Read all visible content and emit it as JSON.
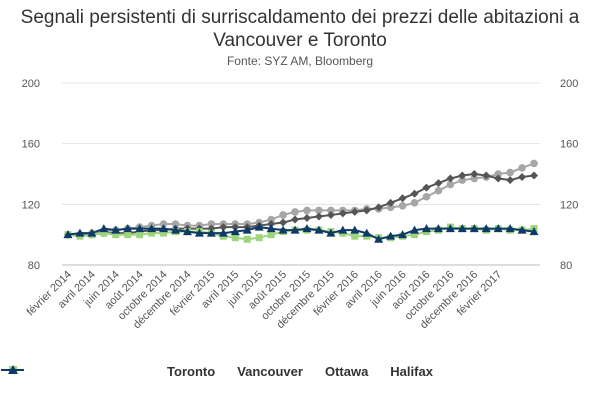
{
  "chart_data": {
    "type": "line",
    "title": "Segnali persistenti di surriscaldamento dei prezzi delle abitazioni a Vancouver e Toronto",
    "subtitle": "Fonte: SYZ AM, Bloomberg",
    "ylim": [
      80,
      200
    ],
    "yticks": [
      80,
      120,
      160,
      200
    ],
    "grid": true,
    "legend_position": "bottom",
    "x_tick_labels": [
      "février 2014",
      "avril 2014",
      "juin 2014",
      "août 2014",
      "octobre 2014",
      "décembre 2014",
      "février 2015",
      "avril 2015",
      "juin 2015",
      "août 2015",
      "octobre 2015",
      "décembre 2015",
      "février 2016",
      "avril 2016",
      "juin 2016",
      "août 2016",
      "octobre 2016",
      "décembre 2016",
      "février 2017"
    ],
    "series": [
      {
        "name": "Toronto",
        "color": "#a6a6a6",
        "marker": "circle",
        "values": [
          100,
          100,
          101,
          102,
          103,
          104,
          105,
          106,
          107,
          107,
          106,
          106,
          107,
          107,
          107,
          107,
          108,
          110,
          113,
          115,
          116,
          116,
          116,
          116,
          116,
          117,
          117,
          118,
          119,
          121,
          125,
          129,
          133,
          136,
          137,
          138,
          140,
          141,
          144,
          147
        ]
      },
      {
        "name": "Vancouver",
        "color": "#555555",
        "marker": "diamond",
        "values": [
          100,
          100,
          100,
          101,
          101,
          101,
          102,
          103,
          103,
          104,
          104,
          104,
          104,
          105,
          105,
          105,
          106,
          107,
          108,
          110,
          111,
          112,
          113,
          114,
          115,
          116,
          118,
          121,
          124,
          127,
          131,
          134,
          137,
          139,
          140,
          139,
          137,
          136,
          138,
          139
        ]
      },
      {
        "name": "Ottawa",
        "color": "#9ed47c",
        "marker": "square",
        "values": [
          100,
          99,
          100,
          101,
          100,
          100,
          100,
          101,
          101,
          102,
          102,
          102,
          101,
          99,
          98,
          97,
          98,
          100,
          102,
          103,
          103,
          103,
          102,
          101,
          99,
          99,
          98,
          98,
          99,
          100,
          102,
          103,
          105,
          104,
          104,
          103,
          104,
          103,
          103,
          104
        ]
      },
      {
        "name": "Halifax",
        "color": "#0d3b66",
        "marker": "triangle",
        "values": [
          100,
          101,
          101,
          104,
          103,
          104,
          104,
          104,
          104,
          103,
          102,
          101,
          101,
          101,
          102,
          103,
          105,
          104,
          103,
          103,
          104,
          103,
          101,
          103,
          103,
          101,
          97,
          99,
          100,
          103,
          104,
          104,
          104,
          104,
          104,
          104,
          104,
          104,
          103,
          102
        ]
      }
    ]
  }
}
